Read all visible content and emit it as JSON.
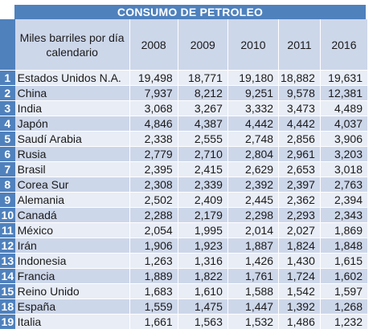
{
  "title": "CONSUMO DE PETROLEO",
  "header": {
    "label": "Miles barriles por día calendario",
    "years": [
      "2008",
      "2009",
      "2010",
      "2011",
      "2016"
    ]
  },
  "rows": [
    {
      "rank": "1",
      "country": "Estados Unidos N.A.",
      "values": [
        "19,498",
        "18,771",
        "19,180",
        "18,882",
        "19,631"
      ]
    },
    {
      "rank": "2",
      "country": "China",
      "values": [
        "7,937",
        "8,212",
        "9,251",
        "9,578",
        "12,381"
      ]
    },
    {
      "rank": "3",
      "country": "India",
      "values": [
        "3,068",
        "3,267",
        "3,332",
        "3,473",
        "4,489"
      ]
    },
    {
      "rank": "4",
      "country": "Japón",
      "values": [
        "4,846",
        "4,387",
        "4,442",
        "4,442",
        "4,037"
      ]
    },
    {
      "rank": "5",
      "country": "Saudí Arabia",
      "values": [
        "2,338",
        "2,555",
        "2,748",
        "2,856",
        "3,906"
      ]
    },
    {
      "rank": "6",
      "country": "Rusia",
      "values": [
        "2,779",
        "2,710",
        "2,804",
        "2,961",
        "3,203"
      ]
    },
    {
      "rank": "7",
      "country": "Brasil",
      "values": [
        "2,395",
        "2,415",
        "2,629",
        "2,653",
        "3,018"
      ]
    },
    {
      "rank": "8",
      "country": "Corea Sur",
      "values": [
        "2,308",
        "2,339",
        "2,392",
        "2,397",
        "2,763"
      ]
    },
    {
      "rank": "9",
      "country": "Alemania",
      "values": [
        "2,502",
        "2,409",
        "2,445",
        "2,362",
        "2,394"
      ]
    },
    {
      "rank": "10",
      "country": "Canadá",
      "values": [
        "2,288",
        "2,179",
        "2,298",
        "2,293",
        "2,343"
      ]
    },
    {
      "rank": "11",
      "country": "México",
      "values": [
        "2,054",
        "1,995",
        "2,014",
        "2,027",
        "1,869"
      ]
    },
    {
      "rank": "12",
      "country": "Irán",
      "values": [
        "1,906",
        "1,923",
        "1,887",
        "1,824",
        "1,848"
      ]
    },
    {
      "rank": "13",
      "country": "Indonesia",
      "values": [
        "1,263",
        "1,316",
        "1,426",
        "1,430",
        "1,615"
      ]
    },
    {
      "rank": "14",
      "country": "Francia",
      "values": [
        "1,889",
        "1,822",
        "1,761",
        "1,724",
        "1,602"
      ]
    },
    {
      "rank": "15",
      "country": "Reino Unido",
      "values": [
        "1,683",
        "1,610",
        "1,588",
        "1,542",
        "1,597"
      ]
    },
    {
      "rank": "18",
      "country": "España",
      "values": [
        "1,559",
        "1,475",
        "1,447",
        "1,392",
        "1,268"
      ]
    },
    {
      "rank": "19",
      "country": "Italia",
      "values": [
        "1,661",
        "1,563",
        "1,532",
        "1,486",
        "1,232"
      ]
    }
  ]
}
